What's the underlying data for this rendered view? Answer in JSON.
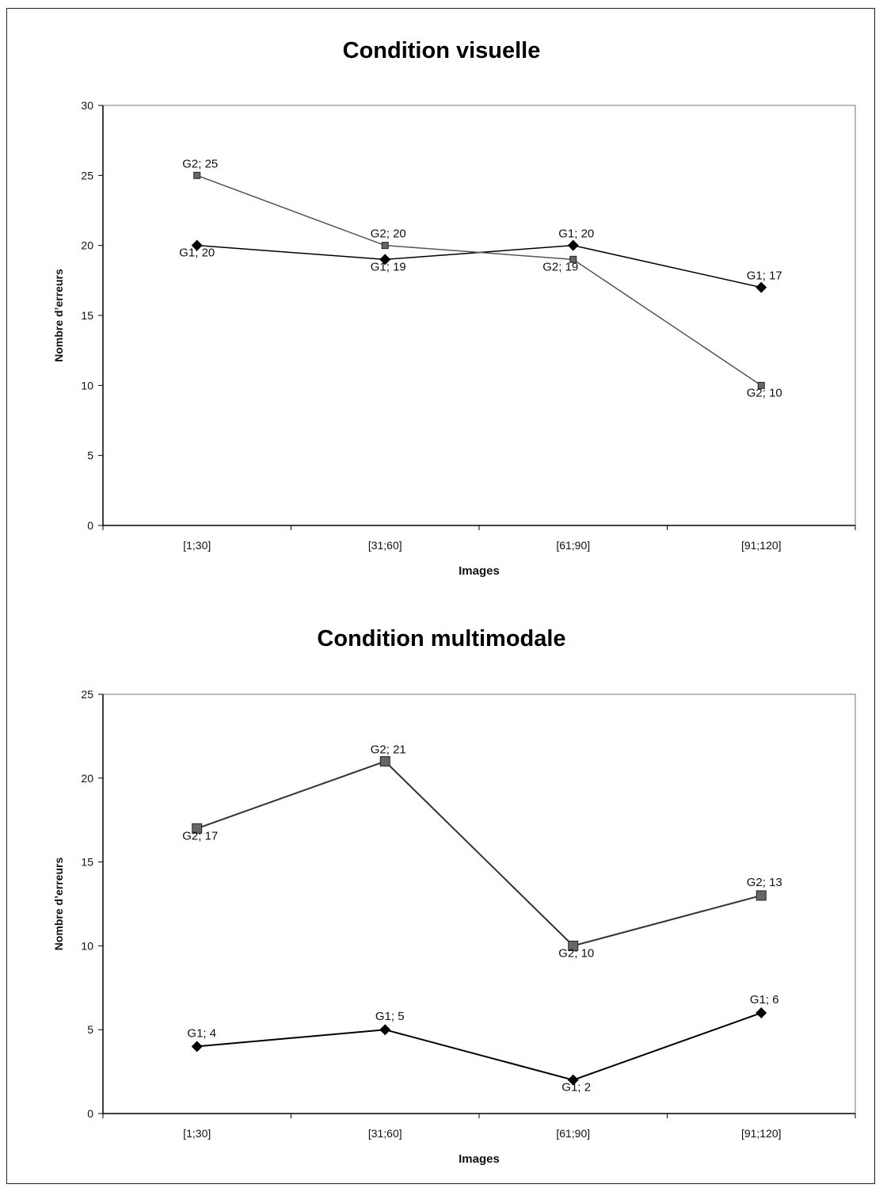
{
  "chart_data": [
    {
      "type": "line",
      "title": "Condition visuelle",
      "xlabel": "Images",
      "ylabel": "Nombre d’erreurs",
      "categories": [
        "[1;30]",
        "[31;60]",
        "[61;90]",
        "[91;120]"
      ],
      "ylim": [
        0,
        30
      ],
      "yticks": [
        0,
        5,
        10,
        15,
        20,
        25,
        30
      ],
      "grid": false,
      "series": [
        {
          "name": "G1",
          "values": [
            20,
            19,
            20,
            17
          ],
          "marker": "diamond",
          "color": "#000000",
          "labels": [
            "G1; 20",
            "G1; 19",
            "G1; 20",
            "G1; 17"
          ]
        },
        {
          "name": "G2",
          "values": [
            25,
            20,
            19,
            10
          ],
          "marker": "square",
          "color": "#555555",
          "labels": [
            "G2; 25",
            "G2; 20",
            "G2; 19",
            "G2; 10"
          ]
        }
      ]
    },
    {
      "type": "line",
      "title": "Condition multimodale",
      "xlabel": "Images",
      "ylabel": "Nombre d’erreurs",
      "categories": [
        "[1;30]",
        "[31;60]",
        "[61;90]",
        "[91;120]"
      ],
      "ylim": [
        0,
        25
      ],
      "yticks": [
        0,
        5,
        10,
        15,
        20,
        25
      ],
      "grid": false,
      "series": [
        {
          "name": "G1",
          "values": [
            4,
            5,
            2,
            6
          ],
          "marker": "diamond",
          "color": "#000000",
          "labels": [
            "G1; 4",
            "G1; 5",
            "G1; 2",
            "G1; 6"
          ]
        },
        {
          "name": "G2",
          "values": [
            17,
            21,
            10,
            13
          ],
          "marker": "square",
          "color": "#333333",
          "labels": [
            "G2; 17",
            "G2; 21",
            "G2; 10",
            "G2; 13"
          ]
        }
      ]
    }
  ]
}
